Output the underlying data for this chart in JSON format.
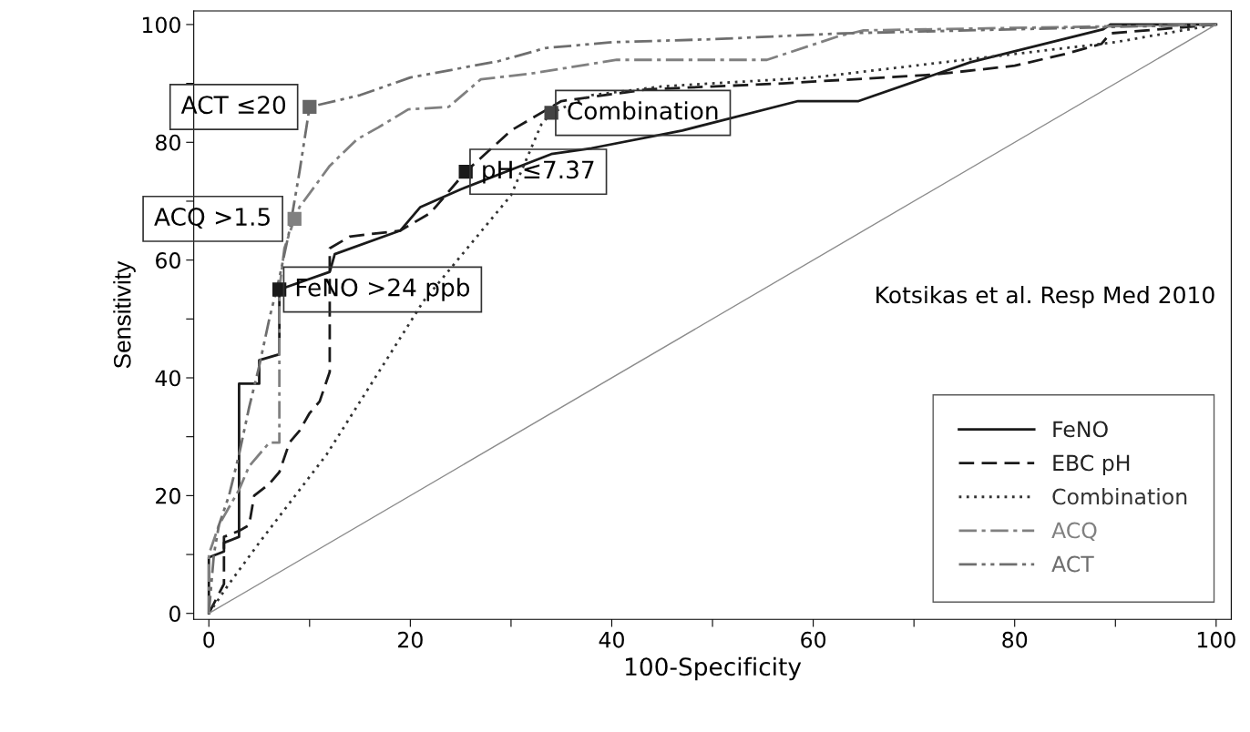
{
  "chart_data": {
    "type": "line",
    "xlabel": "100-Specificity",
    "ylabel": "Sensitivity",
    "xlim": [
      -1.5,
      101.5
    ],
    "ylim": [
      -1,
      102.3
    ],
    "xticks": [
      0,
      {
        "value": 10,
        "label": null
      },
      20,
      {
        "value": 30,
        "label": null
      },
      40,
      {
        "value": 50,
        "label": null
      },
      60,
      {
        "value": 70,
        "label": null
      },
      80,
      {
        "value": 90,
        "label": null
      },
      100
    ],
    "yticks": [
      0,
      {
        "value": 10,
        "label": null
      },
      20,
      {
        "value": 30,
        "label": null
      },
      40,
      {
        "value": 50,
        "label": null
      },
      60,
      {
        "value": 70,
        "label": null
      },
      80,
      {
        "value": 90,
        "label": null
      },
      100
    ],
    "grid": false,
    "legend": "bottom right",
    "marker": "none",
    "series": [
      {
        "name": "FeNO",
        "color": "#1a1a1a",
        "line_style": "solid",
        "x": [
          0,
          0,
          1.5,
          1.5,
          3,
          3,
          5,
          5,
          7,
          7,
          12,
          12.5,
          19,
          21,
          25,
          34,
          38,
          47,
          58.5,
          64.5,
          75.6,
          88.8,
          89.5,
          100
        ],
        "values": [
          0,
          9.5,
          10.5,
          12,
          13,
          39,
          39,
          43,
          44,
          55,
          58,
          61,
          65,
          69,
          72,
          78,
          79,
          82,
          87,
          87,
          93.6,
          99.2,
          100,
          100
        ]
      },
      {
        "name": "EBC pH",
        "color": "#1a1a1a",
        "line_style": "dashed",
        "x": [
          0,
          1.5,
          1.5,
          3,
          4,
          4.5,
          6,
          7,
          8,
          9,
          10,
          11,
          12,
          12,
          14,
          19,
          22,
          25.5,
          30,
          35,
          43.6,
          57,
          72,
          80,
          85,
          88.6,
          89.5,
          100
        ],
        "values": [
          0,
          5,
          13,
          14,
          15,
          20,
          22,
          24,
          29,
          31,
          34,
          36,
          41,
          62,
          64,
          65,
          68,
          75,
          82,
          87,
          89,
          90,
          91.5,
          93,
          95,
          96.7,
          98.5,
          100
        ]
      },
      {
        "name": "Combination",
        "color": "#333333",
        "line_style": "dotted",
        "x": [
          0,
          2,
          5,
          11.7,
          21.3,
          30,
          33,
          34,
          38,
          45,
          60,
          75,
          90,
          100
        ],
        "values": [
          0,
          5,
          12,
          27,
          53,
          71,
          83,
          85,
          88,
          89.5,
          91,
          94,
          97,
          100
        ]
      },
      {
        "name": "ACQ",
        "color": "#808080",
        "line_style": "dashdot",
        "x": [
          0,
          0,
          1,
          2,
          3,
          4,
          6,
          7,
          7,
          7.5,
          8.5,
          9,
          12,
          14.7,
          16.8,
          19.8,
          23.8,
          27,
          31.7,
          40.5,
          55.4,
          62.5,
          65,
          100
        ],
        "values": [
          0,
          10,
          15,
          18,
          21,
          25,
          29,
          29,
          55,
          62,
          67,
          69,
          76,
          80.5,
          82.5,
          85.6,
          86,
          90.7,
          91.6,
          94,
          94,
          98,
          99,
          100
        ]
      },
      {
        "name": "ACT",
        "color": "#6e6e6e",
        "line_style": "dashdotdot",
        "x": [
          0,
          0.5,
          1,
          2,
          3,
          4,
          5,
          6,
          7,
          8,
          9,
          10,
          15,
          20,
          28.8,
          33.4,
          40,
          50,
          63,
          100
        ],
        "values": [
          0,
          10,
          15,
          20,
          27,
          35,
          42,
          50,
          57,
          65,
          75,
          86,
          88,
          91,
          93.8,
          96,
          97,
          97.5,
          98.5,
          100
        ]
      },
      {
        "color": "#8c8c8c",
        "line_style": "solid",
        "x": [
          0,
          100
        ],
        "values": [
          0,
          100
        ]
      }
    ],
    "annotations": [
      {
        "text": "ACT ≤20",
        "x": 10,
        "y": 86
      },
      {
        "text": "ACQ >1.5",
        "x": 8.5,
        "y": 67
      },
      {
        "text": "FeNO >24 ppb",
        "x": 7,
        "y": 55
      },
      {
        "text": "pH ≤7.37",
        "x": 25.5,
        "y": 75
      },
      {
        "text": "Combination",
        "x": 34,
        "y": 85
      },
      "Kotsikas et al. Resp Med 2010"
    ]
  }
}
